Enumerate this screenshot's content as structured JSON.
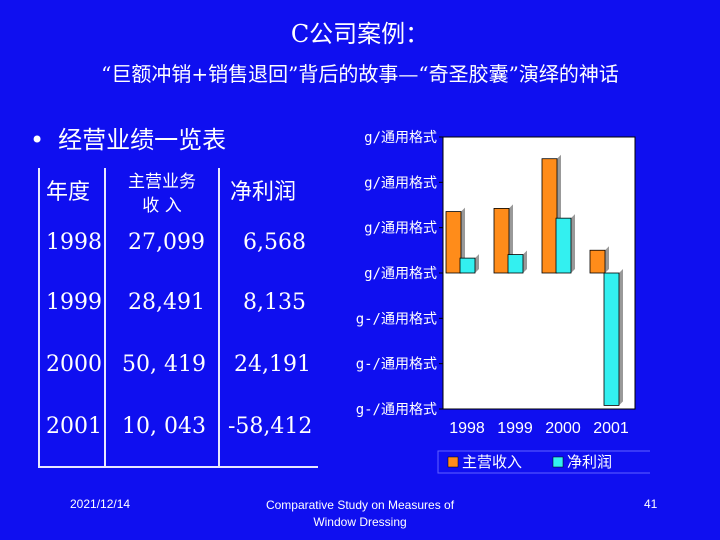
{
  "slide": {
    "title": "C公司案例：",
    "subtitle": "“巨额冲销+销售退回”背后的故事—“奇圣胶囊”演绎的神话",
    "bullet_marker": "•",
    "bullet_text": "经营业绩一览表"
  },
  "table": {
    "headers": {
      "year": "年度",
      "revenue_line1": "主营业务",
      "revenue_line2": "收  入",
      "profit": "净利润"
    },
    "rows": [
      {
        "year": "1998",
        "revenue": "27,099",
        "profit": "6,568"
      },
      {
        "year": "1999",
        "revenue": "28,491",
        "profit": "8,135"
      },
      {
        "year": "2000",
        "revenue": "50, 419",
        "profit": "24,191"
      },
      {
        "year": "2001",
        "revenue": "10, 043",
        "profit": "-58,412"
      }
    ]
  },
  "chart_data": {
    "type": "bar",
    "categories": [
      "1998",
      "1999",
      "2000",
      "2001"
    ],
    "series": [
      {
        "name": "主营收入",
        "values": [
          27099,
          28491,
          50419,
          10043
        ],
        "color": "#ff8c1a"
      },
      {
        "name": "净利润",
        "values": [
          6568,
          8135,
          24191,
          -58412
        ],
        "color": "#33f0f0"
      }
    ],
    "y_tick_labels": [
      "g/通用格式",
      "g/通用格式",
      "g/通用格式",
      "g/通用格式",
      "g-/通用格式",
      "g-/通用格式",
      "g-/通用格式"
    ],
    "ylim": [
      -60000,
      60000
    ],
    "legend_position": "bottom",
    "colors": {
      "plot_bg": "#ffffff",
      "axis": "#000000"
    }
  },
  "footer": {
    "date": "2021/12/14",
    "center_line1": "Comparative Study on Measures of",
    "center_line2": "Window Dressing",
    "page": "41"
  }
}
